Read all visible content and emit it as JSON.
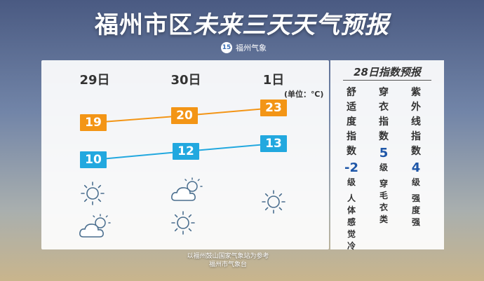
{
  "header": {
    "title_part1": "福州市区",
    "title_part2": "未来三天天气预报",
    "brand_logo_text": "15",
    "brand": "福州气象"
  },
  "forecast": {
    "unit": "(单位：℃)",
    "days": [
      {
        "label": "29日",
        "high": "19",
        "low": "10",
        "icon_top": "sunny-icon",
        "icon_bottom": "partly-cloudy-icon"
      },
      {
        "label": "30日",
        "high": "20",
        "low": "12",
        "icon_top": "partly-cloudy-icon",
        "icon_bottom": "sunny-icon"
      },
      {
        "label": "1日",
        "high": "23",
        "low": "13",
        "icon_top": "sunny-icon",
        "icon_bottom": ""
      }
    ],
    "colors": {
      "high": "#f39516",
      "low": "#22a8df"
    }
  },
  "indices": {
    "title": "28日指数预报",
    "items": [
      {
        "name": "舒适度指数",
        "value": "-2",
        "level": "级",
        "desc": "人体感觉冷"
      },
      {
        "name": "穿衣指数",
        "value": "5",
        "level": "级",
        "desc": "穿毛衣类"
      },
      {
        "name": "紫外线指数",
        "value": "4",
        "level": "级",
        "desc": "强度强"
      }
    ]
  },
  "footer": {
    "line1": "以福州鼓山国家气象站为参考",
    "line2": "福州市气象台"
  }
}
